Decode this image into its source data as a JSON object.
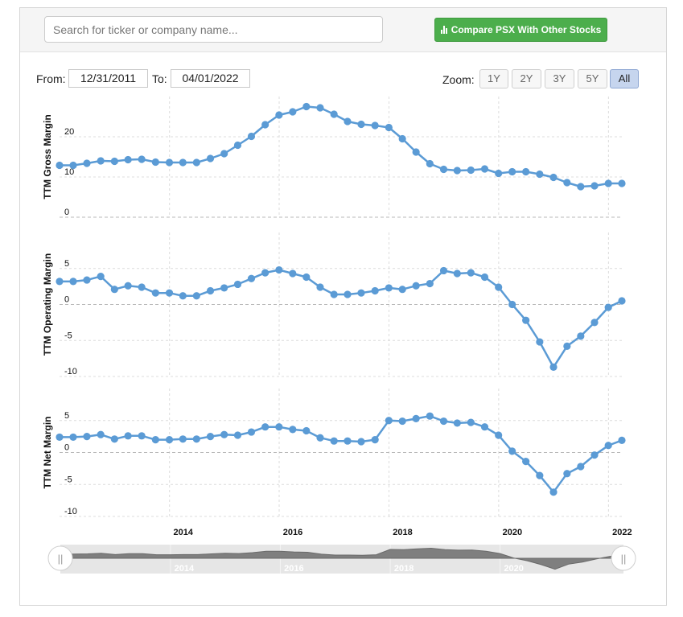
{
  "search": {
    "placeholder": "Search for ticker or company name..."
  },
  "compare_button": {
    "label": "Compare PSX With Other Stocks",
    "color": "#4cae4c"
  },
  "range": {
    "from_label": "From:",
    "from_value": "12/31/2011",
    "to_label": "To:",
    "to_value": "04/01/2022"
  },
  "zoom": {
    "label": "Zoom:",
    "options": [
      "1Y",
      "2Y",
      "3Y",
      "5Y",
      "All"
    ],
    "active": "All"
  },
  "chart_data": {
    "type": "line",
    "series_color": "#5b9bd5",
    "grid": "dashed horizontal and vertical",
    "x_dates": [
      "2011-12-31",
      "2012-03-31",
      "2012-06-30",
      "2012-09-30",
      "2012-12-31",
      "2013-03-31",
      "2013-06-30",
      "2013-09-30",
      "2013-12-31",
      "2014-03-31",
      "2014-06-30",
      "2014-09-30",
      "2014-12-31",
      "2015-03-31",
      "2015-06-30",
      "2015-09-30",
      "2015-12-31",
      "2016-03-31",
      "2016-06-30",
      "2016-09-30",
      "2016-12-31",
      "2017-03-31",
      "2017-06-30",
      "2017-09-30",
      "2017-12-31",
      "2018-03-31",
      "2018-06-30",
      "2018-09-30",
      "2018-12-31",
      "2019-03-31",
      "2019-06-30",
      "2019-09-30",
      "2019-12-31",
      "2020-03-31",
      "2020-06-30",
      "2020-09-30",
      "2020-12-31",
      "2021-03-31",
      "2021-06-30",
      "2021-09-30",
      "2021-12-31",
      "2022-03-31"
    ],
    "x_ticks": [
      "2014",
      "2016",
      "2018",
      "2020",
      "2022"
    ],
    "panels": [
      {
        "ylabel": "TTM Gross Margin",
        "yticks": [
          0,
          10,
          20
        ],
        "ylim": [
          0,
          30
        ],
        "values": [
          12.9,
          12.9,
          13.4,
          14.0,
          13.9,
          14.3,
          14.4,
          13.7,
          13.6,
          13.6,
          13.6,
          14.6,
          15.8,
          17.9,
          20.1,
          23.0,
          25.4,
          26.2,
          27.5,
          27.2,
          25.6,
          23.8,
          23.1,
          22.8,
          22.3,
          19.5,
          16.2,
          13.3,
          11.9,
          11.6,
          11.7,
          12.0,
          10.9,
          11.3,
          11.3,
          10.7,
          9.9,
          8.6,
          7.6,
          7.8,
          8.4,
          8.4
        ]
      },
      {
        "ylabel": "TTM Operating Margin",
        "yticks": [
          -10,
          -5,
          0,
          5
        ],
        "ylim": [
          -10,
          10
        ],
        "values": [
          3.2,
          3.2,
          3.4,
          3.9,
          2.1,
          2.6,
          2.4,
          1.6,
          1.6,
          1.2,
          1.2,
          1.9,
          2.3,
          2.8,
          3.6,
          4.4,
          4.8,
          4.3,
          3.8,
          2.4,
          1.4,
          1.4,
          1.6,
          1.9,
          2.3,
          2.1,
          2.6,
          2.9,
          4.7,
          4.3,
          4.4,
          3.8,
          2.4,
          0.0,
          -2.2,
          -5.2,
          -8.7,
          -5.8,
          -4.4,
          -2.5,
          -0.4,
          0.5
        ]
      },
      {
        "ylabel": "TTM Net Margin",
        "yticks": [
          -10,
          -5,
          0,
          5
        ],
        "ylim": [
          -10,
          10
        ],
        "values": [
          2.4,
          2.4,
          2.5,
          2.8,
          2.1,
          2.6,
          2.6,
          2.0,
          2.0,
          2.1,
          2.1,
          2.5,
          2.8,
          2.7,
          3.2,
          4.0,
          4.0,
          3.6,
          3.4,
          2.3,
          1.8,
          1.8,
          1.7,
          2.0,
          5.0,
          4.9,
          5.3,
          5.7,
          4.9,
          4.6,
          4.7,
          4.0,
          2.7,
          0.2,
          -1.4,
          -3.6,
          -6.2,
          -3.3,
          -2.2,
          -0.4,
          1.1,
          1.9
        ]
      }
    ],
    "navigator": {
      "x_ticks": [
        "2014",
        "2016",
        "2018",
        "2020"
      ],
      "handle_glyph": "||"
    }
  }
}
